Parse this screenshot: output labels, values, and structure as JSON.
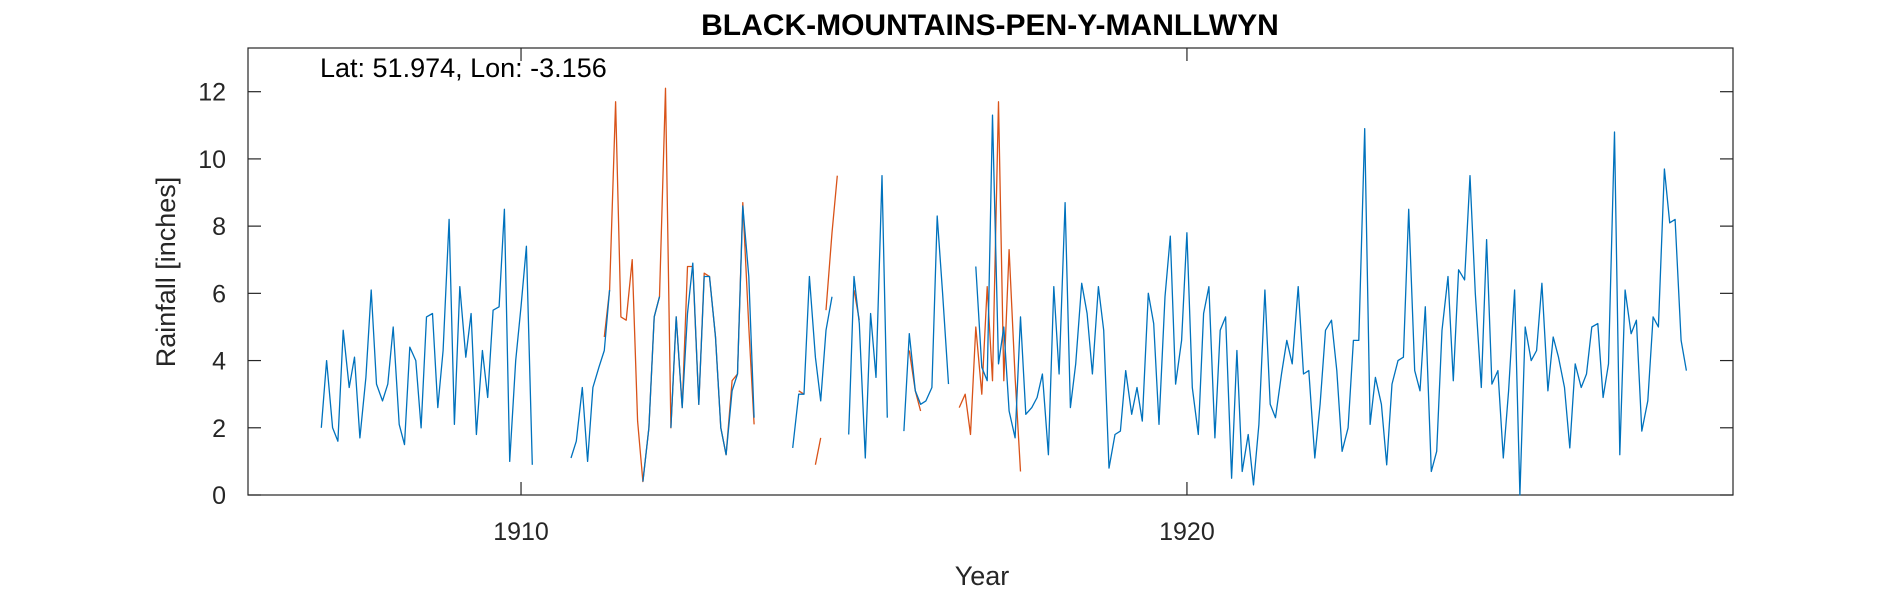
{
  "chart_data": {
    "type": "line",
    "title": "BLACK-MOUNTAINS-PEN-Y-MANLLWYN",
    "annotation": "Lat: 51.974, Lon: -3.156",
    "xlabel": "Year",
    "ylabel": "Rainfall [inches]",
    "xlim": [
      1905.9,
      1928.2
    ],
    "ylim": [
      0,
      13.3
    ],
    "x_ticks": [
      1910,
      1920
    ],
    "x_tick_labels": [
      "1910",
      "1920"
    ],
    "y_ticks": [
      0,
      2,
      4,
      6,
      8,
      10,
      12
    ],
    "y_tick_labels": [
      "0",
      "2",
      "4",
      "6",
      "8",
      "10",
      "12"
    ],
    "grid": false,
    "legend": "none",
    "colors": {
      "series_1": "#0072BD",
      "series_2": "#D95319",
      "axis": "#262626"
    },
    "series": [
      {
        "values": [
          [
            1907.0,
            2.0
          ],
          [
            1907.08,
            4.0
          ],
          [
            1907.17,
            2.0
          ],
          [
            1907.25,
            1.6
          ],
          [
            1907.33,
            4.9
          ],
          [
            1907.42,
            3.2
          ],
          [
            1907.5,
            4.1
          ],
          [
            1907.58,
            1.7
          ],
          [
            1907.67,
            3.5
          ],
          [
            1907.75,
            6.1
          ],
          [
            1907.83,
            3.3
          ],
          [
            1907.92,
            2.8
          ],
          [
            1908.0,
            3.3
          ],
          [
            1908.08,
            5.0
          ],
          [
            1908.17,
            2.1
          ],
          [
            1908.25,
            1.5
          ],
          [
            1908.33,
            4.4
          ],
          [
            1908.42,
            4.0
          ],
          [
            1908.5,
            2.0
          ],
          [
            1908.58,
            5.3
          ],
          [
            1908.67,
            5.4
          ],
          [
            1908.75,
            2.6
          ],
          [
            1908.83,
            4.3
          ],
          [
            1908.92,
            8.2
          ],
          [
            1909.0,
            2.1
          ],
          [
            1909.08,
            6.2
          ],
          [
            1909.17,
            4.1
          ],
          [
            1909.25,
            5.4
          ],
          [
            1909.33,
            1.8
          ],
          [
            1909.42,
            4.3
          ],
          [
            1909.5,
            2.9
          ],
          [
            1909.58,
            5.5
          ],
          [
            1909.67,
            5.6
          ],
          [
            1909.75,
            8.5
          ],
          [
            1909.83,
            1.0
          ],
          [
            1909.92,
            4.0
          ],
          [
            1910.0,
            5.6
          ],
          [
            1910.08,
            7.4
          ],
          [
            1910.17,
            0.9
          ],
          null,
          [
            1910.75,
            1.1
          ],
          [
            1910.83,
            1.6
          ],
          [
            1910.92,
            3.2
          ],
          [
            1911.0,
            1.0
          ],
          [
            1911.08,
            3.2
          ],
          [
            1911.17,
            3.8
          ],
          [
            1911.25,
            4.3
          ],
          [
            1911.33,
            6.1
          ],
          null,
          [
            1911.83,
            0.4
          ],
          [
            1911.92,
            2.0
          ],
          [
            1912.0,
            5.3
          ],
          [
            1912.08,
            5.9
          ],
          null,
          [
            1912.25,
            2.0
          ],
          [
            1912.33,
            5.3
          ],
          [
            1912.42,
            2.6
          ],
          [
            1912.5,
            5.4
          ],
          [
            1912.58,
            6.9
          ],
          [
            1912.67,
            2.7
          ],
          [
            1912.75,
            6.5
          ],
          [
            1912.83,
            6.5
          ],
          [
            1912.92,
            4.7
          ],
          [
            1913.0,
            2.0
          ],
          [
            1913.08,
            1.2
          ],
          [
            1913.17,
            3.1
          ],
          [
            1913.25,
            3.6
          ],
          [
            1913.33,
            8.6
          ],
          [
            1913.42,
            6.5
          ],
          [
            1913.5,
            2.3
          ],
          null,
          [
            1914.08,
            1.4
          ],
          [
            1914.17,
            3.0
          ],
          [
            1914.25,
            3.0
          ],
          [
            1914.33,
            6.5
          ],
          [
            1914.42,
            4.1
          ],
          [
            1914.5,
            2.8
          ],
          [
            1914.58,
            4.9
          ],
          [
            1914.67,
            5.9
          ],
          null,
          [
            1914.92,
            1.8
          ],
          [
            1915.0,
            6.5
          ],
          [
            1915.08,
            5.1
          ],
          [
            1915.17,
            1.1
          ],
          [
            1915.25,
            5.4
          ],
          [
            1915.33,
            3.5
          ],
          [
            1915.42,
            9.5
          ],
          [
            1915.5,
            2.3
          ],
          null,
          [
            1915.75,
            1.9
          ],
          [
            1915.83,
            4.8
          ],
          [
            1915.92,
            3.1
          ],
          [
            1916.0,
            2.7
          ],
          [
            1916.08,
            2.8
          ],
          [
            1916.17,
            3.2
          ],
          [
            1916.25,
            8.3
          ],
          [
            1916.33,
            6.0
          ],
          [
            1916.42,
            3.3
          ],
          null,
          [
            1916.83,
            6.8
          ],
          [
            1916.92,
            3.8
          ],
          [
            1917.0,
            3.4
          ],
          [
            1917.08,
            11.3
          ],
          [
            1917.17,
            3.9
          ],
          [
            1917.25,
            5.0
          ],
          [
            1917.33,
            2.5
          ],
          [
            1917.42,
            1.7
          ],
          [
            1917.5,
            5.3
          ],
          [
            1917.58,
            2.4
          ],
          [
            1917.67,
            2.6
          ],
          [
            1917.75,
            2.9
          ],
          [
            1917.83,
            3.6
          ],
          [
            1917.92,
            1.2
          ],
          [
            1918.0,
            6.2
          ],
          [
            1918.08,
            3.6
          ],
          [
            1918.17,
            8.7
          ],
          [
            1918.25,
            2.6
          ],
          [
            1918.33,
            3.9
          ],
          [
            1918.42,
            6.3
          ],
          [
            1918.5,
            5.4
          ],
          [
            1918.58,
            3.6
          ],
          [
            1918.67,
            6.2
          ],
          [
            1918.75,
            4.9
          ],
          [
            1918.83,
            0.8
          ],
          [
            1918.92,
            1.8
          ],
          [
            1919.0,
            1.9
          ],
          [
            1919.08,
            3.7
          ],
          [
            1919.17,
            2.4
          ],
          [
            1919.25,
            3.2
          ],
          [
            1919.33,
            2.2
          ],
          [
            1919.42,
            6.0
          ],
          [
            1919.5,
            5.1
          ],
          [
            1919.58,
            2.1
          ],
          [
            1919.67,
            5.9
          ],
          [
            1919.75,
            7.7
          ],
          [
            1919.83,
            3.3
          ],
          [
            1919.92,
            4.6
          ],
          [
            1920.0,
            7.8
          ],
          [
            1920.08,
            3.2
          ],
          [
            1920.17,
            1.8
          ],
          [
            1920.25,
            5.4
          ],
          [
            1920.33,
            6.2
          ],
          [
            1920.42,
            1.7
          ],
          [
            1920.5,
            4.9
          ],
          [
            1920.58,
            5.3
          ],
          [
            1920.67,
            0.5
          ],
          [
            1920.75,
            4.3
          ],
          [
            1920.83,
            0.7
          ],
          [
            1920.92,
            1.8
          ],
          [
            1921.0,
            0.3
          ],
          [
            1921.08,
            2.1
          ],
          [
            1921.17,
            6.1
          ],
          [
            1921.25,
            2.7
          ],
          [
            1921.33,
            2.3
          ],
          [
            1921.42,
            3.6
          ],
          [
            1921.5,
            4.6
          ],
          [
            1921.58,
            3.9
          ],
          [
            1921.67,
            6.2
          ],
          [
            1921.75,
            3.6
          ],
          [
            1921.83,
            3.7
          ],
          [
            1921.92,
            1.1
          ],
          [
            1922.0,
            2.7
          ],
          [
            1922.08,
            4.9
          ],
          [
            1922.17,
            5.2
          ],
          [
            1922.25,
            3.7
          ],
          [
            1922.33,
            1.3
          ],
          [
            1922.42,
            2.0
          ],
          [
            1922.5,
            4.6
          ],
          [
            1922.58,
            4.6
          ],
          [
            1922.67,
            10.9
          ],
          [
            1922.75,
            2.1
          ],
          [
            1922.83,
            3.5
          ],
          [
            1922.92,
            2.7
          ],
          [
            1923.0,
            0.9
          ],
          [
            1923.08,
            3.3
          ],
          [
            1923.17,
            4.0
          ],
          [
            1923.25,
            4.1
          ],
          [
            1923.33,
            8.5
          ],
          [
            1923.42,
            3.7
          ],
          [
            1923.5,
            3.1
          ],
          [
            1923.58,
            5.6
          ],
          [
            1923.67,
            0.7
          ],
          [
            1923.75,
            1.3
          ],
          [
            1923.83,
            4.9
          ],
          [
            1923.92,
            6.5
          ],
          [
            1924.0,
            3.4
          ],
          [
            1924.08,
            6.7
          ],
          [
            1924.17,
            6.4
          ],
          [
            1924.25,
            9.5
          ],
          [
            1924.33,
            6.0
          ],
          [
            1924.42,
            3.2
          ],
          [
            1924.5,
            7.6
          ],
          [
            1924.58,
            3.3
          ],
          [
            1924.67,
            3.7
          ],
          [
            1924.75,
            1.1
          ],
          [
            1924.83,
            3.1
          ],
          [
            1924.92,
            6.1
          ],
          [
            1925.0,
            0.0
          ],
          [
            1925.08,
            5.0
          ],
          [
            1925.17,
            4.0
          ],
          [
            1925.25,
            4.3
          ],
          [
            1925.33,
            6.3
          ],
          [
            1925.42,
            3.1
          ],
          [
            1925.5,
            4.7
          ],
          [
            1925.58,
            4.1
          ],
          [
            1925.67,
            3.2
          ],
          [
            1925.75,
            1.4
          ],
          [
            1925.83,
            3.9
          ],
          [
            1925.92,
            3.2
          ],
          [
            1926.0,
            3.6
          ],
          [
            1926.08,
            5.0
          ],
          [
            1926.17,
            5.1
          ],
          [
            1926.25,
            2.9
          ],
          [
            1926.33,
            3.9
          ],
          [
            1926.42,
            10.8
          ],
          [
            1926.5,
            1.2
          ],
          [
            1926.58,
            6.1
          ],
          [
            1926.67,
            4.8
          ],
          [
            1926.75,
            5.2
          ],
          [
            1926.83,
            1.9
          ],
          [
            1926.92,
            2.8
          ],
          [
            1927.0,
            5.3
          ],
          [
            1927.08,
            5.0
          ],
          [
            1927.17,
            9.7
          ],
          [
            1927.25,
            8.1
          ],
          [
            1927.33,
            8.2
          ],
          [
            1927.42,
            4.6
          ],
          [
            1927.5,
            3.7
          ]
        ]
      },
      {
        "values": [
          [
            1911.25,
            4.7
          ],
          [
            1911.33,
            6.1
          ],
          [
            1911.42,
            11.7
          ],
          [
            1911.5,
            5.3
          ],
          [
            1911.58,
            5.2
          ],
          [
            1911.67,
            7.0
          ],
          [
            1911.75,
            2.2
          ],
          [
            1911.83,
            0.4
          ],
          [
            1911.92,
            2.0
          ],
          [
            1912.0,
            5.3
          ],
          [
            1912.08,
            5.9
          ],
          [
            1912.17,
            12.1
          ],
          [
            1912.25,
            2.0
          ],
          [
            1912.33,
            5.3
          ],
          [
            1912.42,
            2.6
          ],
          [
            1912.5,
            6.8
          ],
          [
            1912.58,
            6.8
          ],
          [
            1912.67,
            2.7
          ],
          [
            1912.75,
            6.6
          ],
          [
            1912.83,
            6.5
          ],
          [
            1912.92,
            4.7
          ],
          [
            1913.0,
            2.0
          ],
          [
            1913.08,
            1.2
          ],
          [
            1913.17,
            3.4
          ],
          [
            1913.25,
            3.6
          ],
          [
            1913.33,
            8.7
          ],
          [
            1913.42,
            5.0
          ],
          [
            1913.5,
            2.1
          ],
          null,
          [
            1914.17,
            3.1
          ],
          [
            1914.25,
            3.0
          ],
          null,
          [
            1914.58,
            5.5
          ],
          [
            1914.67,
            7.8
          ],
          [
            1914.75,
            9.5
          ],
          null,
          [
            1914.42,
            0.9
          ],
          [
            1914.5,
            1.7
          ],
          null,
          [
            1915.0,
            6.1
          ],
          [
            1915.08,
            5.2
          ],
          null,
          [
            1915.25,
            6.6
          ],
          null,
          [
            1915.83,
            4.3
          ],
          [
            1915.92,
            3.1
          ],
          [
            1916.0,
            2.5
          ],
          null,
          [
            1916.58,
            2.6
          ],
          [
            1916.67,
            3.0
          ],
          [
            1916.75,
            1.8
          ],
          [
            1916.83,
            5.0
          ],
          [
            1916.92,
            3.0
          ],
          [
            1917.0,
            6.2
          ],
          [
            1917.08,
            3.4
          ],
          [
            1917.17,
            11.7
          ],
          [
            1917.25,
            3.4
          ],
          [
            1917.33,
            7.3
          ],
          [
            1917.42,
            3.5
          ],
          [
            1917.5,
            0.7
          ]
        ]
      }
    ]
  }
}
